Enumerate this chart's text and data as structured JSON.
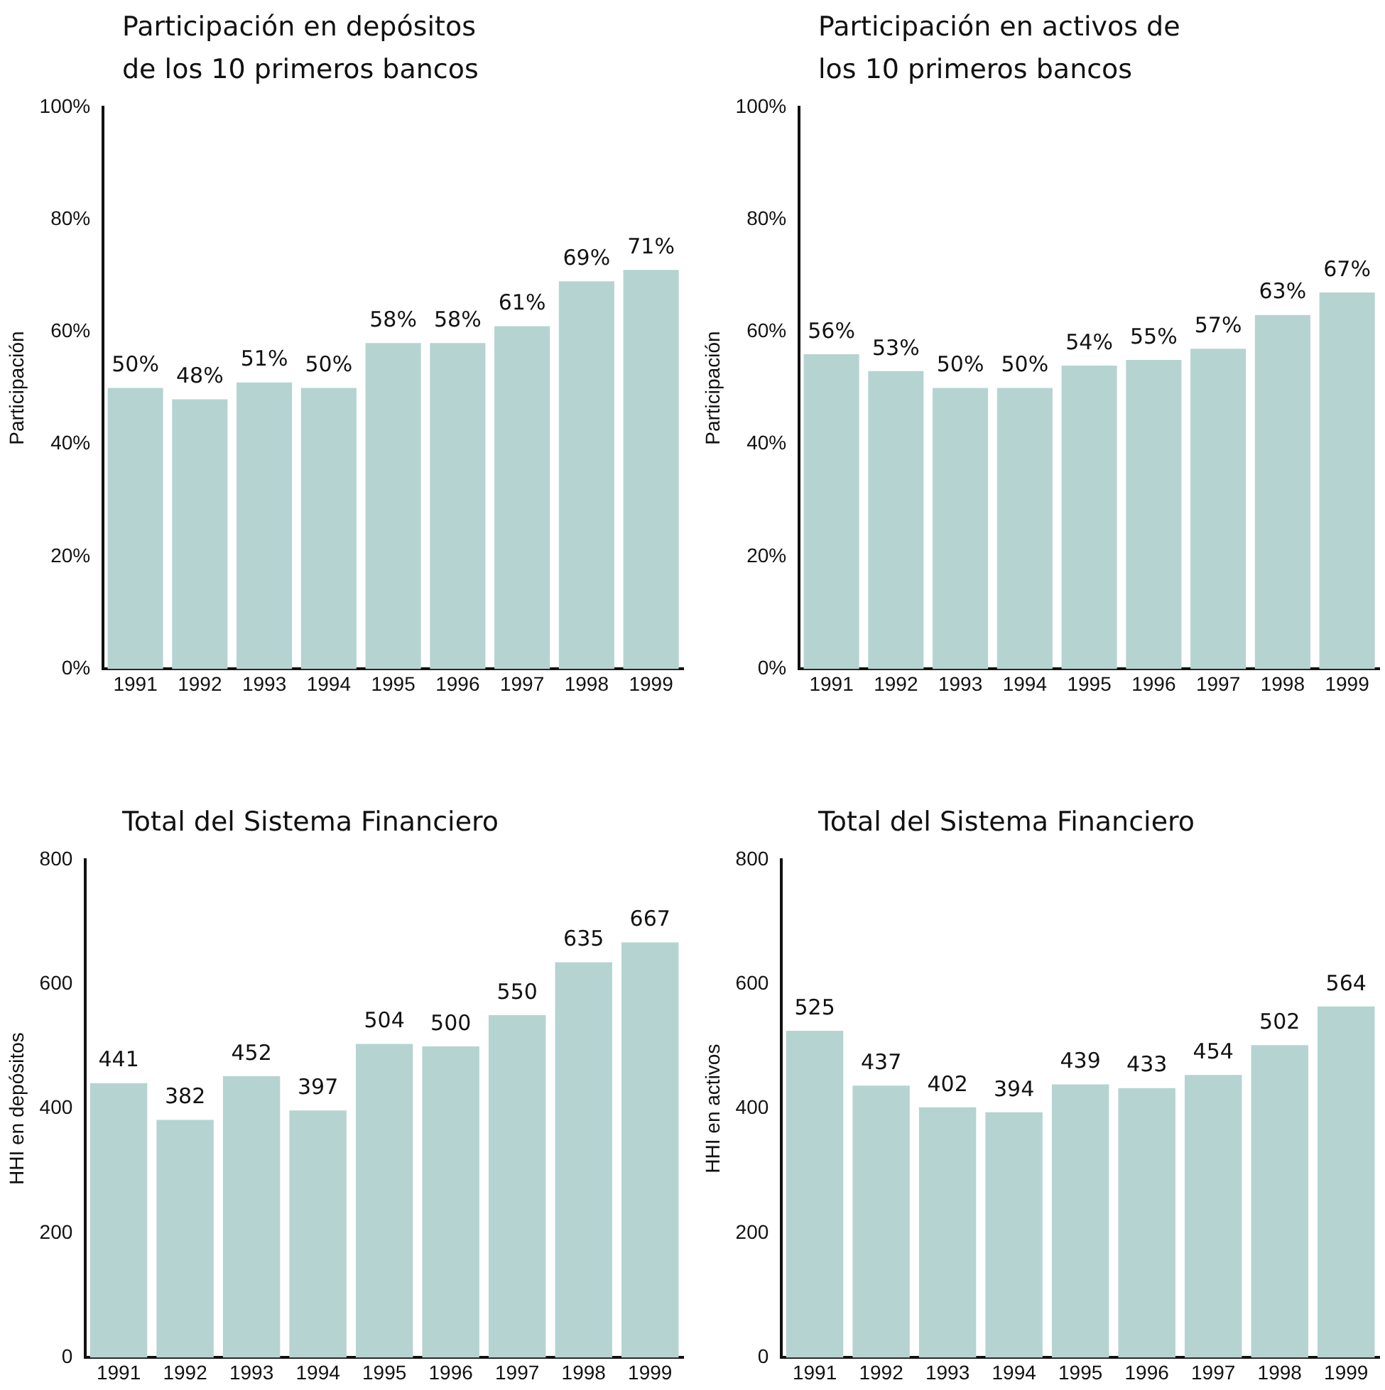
{
  "chart_data": [
    {
      "type": "bar",
      "title": "Participación en depósitos de los 10 primeros bancos",
      "ylabel": "Participación",
      "categories": [
        "1991",
        "1992",
        "1993",
        "1994",
        "1995",
        "1996",
        "1997",
        "1998",
        "1999"
      ],
      "values": [
        50,
        48,
        51,
        50,
        58,
        58,
        61,
        69,
        71
      ],
      "value_labels": [
        "50%",
        "48%",
        "51%",
        "50%",
        "58%",
        "58%",
        "61%",
        "69%",
        "71%"
      ],
      "color": "#b5d3d1",
      "ylim": [
        0,
        100
      ],
      "yticks": [
        {
          "value": 0,
          "label": "0%"
        },
        {
          "value": 20,
          "label": "20%"
        },
        {
          "value": 40,
          "label": "40%"
        },
        {
          "value": 60,
          "label": "60%"
        },
        {
          "value": 80,
          "label": "80%"
        },
        {
          "value": 100,
          "label": "100%"
        }
      ],
      "grid": false,
      "legend": false
    },
    {
      "type": "bar",
      "title": "Participación en activos de los 10 primeros bancos",
      "ylabel": "Participación",
      "categories": [
        "1991",
        "1992",
        "1993",
        "1994",
        "1995",
        "1996",
        "1997",
        "1998",
        "1999"
      ],
      "values": [
        56,
        53,
        50,
        50,
        54,
        55,
        57,
        63,
        67
      ],
      "value_labels": [
        "56%",
        "53%",
        "50%",
        "50%",
        "54%",
        "55%",
        "57%",
        "63%",
        "67%"
      ],
      "color": "#b5d3d1",
      "ylim": [
        0,
        100
      ],
      "yticks": [
        {
          "value": 0,
          "label": "0%"
        },
        {
          "value": 20,
          "label": "20%"
        },
        {
          "value": 40,
          "label": "40%"
        },
        {
          "value": 60,
          "label": "60%"
        },
        {
          "value": 80,
          "label": "80%"
        },
        {
          "value": 100,
          "label": "100%"
        }
      ],
      "grid": false,
      "legend": false
    },
    {
      "type": "bar",
      "title": "Total del Sistema Financiero",
      "ylabel": "HHI en depósitos",
      "categories": [
        "1991",
        "1992",
        "1993",
        "1994",
        "1995",
        "1996",
        "1997",
        "1998",
        "1999"
      ],
      "values": [
        441,
        382,
        452,
        397,
        504,
        500,
        550,
        635,
        667
      ],
      "data_labels": true,
      "color": "#b5d3d1",
      "ylim": [
        0,
        800
      ],
      "yticks": [
        0,
        200,
        400,
        600,
        800
      ],
      "grid": false,
      "legend": false
    },
    {
      "type": "bar",
      "title": "Total del Sistema Financiero",
      "ylabel": "HHI en activos",
      "categories": [
        "1991",
        "1992",
        "1993",
        "1994",
        "1995",
        "1996",
        "1997",
        "1998",
        "1999"
      ],
      "values": [
        525,
        437,
        402,
        394,
        439,
        433,
        454,
        502,
        564
      ],
      "data_labels": true,
      "color": "#b5d3d1",
      "ylim": [
        0,
        800
      ],
      "yticks": [
        0,
        200,
        400,
        600,
        800
      ],
      "grid": false,
      "legend": false
    }
  ]
}
